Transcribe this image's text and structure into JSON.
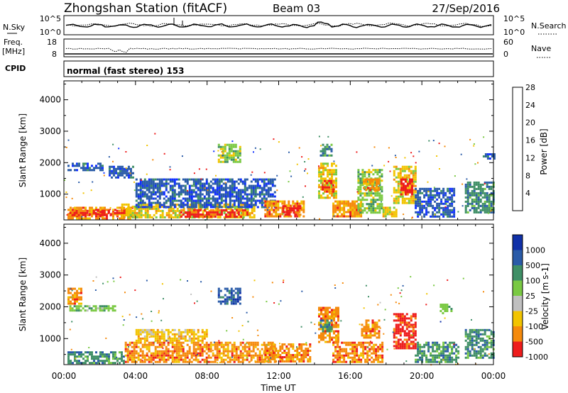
{
  "header": {
    "station": "Zhongshan Station (fitACF)",
    "beam": "Beam 03",
    "date": "27/Sep/2016"
  },
  "nsky_panel": {
    "left_label": "N.Sky",
    "left_ticks": [
      "10^5",
      "10^0"
    ],
    "right_ticks": [
      "10^5",
      "10^0"
    ],
    "right_label": "N.Search"
  },
  "freq_panel": {
    "left_label_1": "Freq.",
    "left_label_2": "[MHz]",
    "left_ticks": [
      "18",
      "8"
    ],
    "right_ticks": [
      "60",
      "0"
    ],
    "right_label": "Nave"
  },
  "cpid_panel": {
    "left_label": "CPID",
    "text": "normal (fast stereo) 153"
  },
  "chart_data": [
    {
      "type": "heatmap",
      "panel": "power",
      "ylabel": "Slant Range [km]",
      "xlabel": "",
      "xlim": [
        0,
        24
      ],
      "ylim": [
        180,
        4600
      ],
      "yticks": [
        1000,
        2000,
        3000,
        4000
      ],
      "colorbar_label": "Power [dB]",
      "colorbar_ticks": [
        "4",
        "8",
        "12",
        "16",
        "20",
        "24",
        "28"
      ],
      "colorbar_colors": [
        "#1030ff",
        "#2a5ba8",
        "#3f8f66",
        "#7ac943",
        "#f2c400",
        "#f58a0c",
        "#ee1c1c"
      ],
      "patches": [
        {
          "t0": 0.2,
          "t1": 3.8,
          "r0": 250,
          "r1": 600,
          "v": 24
        },
        {
          "t0": 0.3,
          "t1": 3.4,
          "r0": 320,
          "r1": 500,
          "v": 28
        },
        {
          "t0": 3.2,
          "t1": 10.6,
          "r0": 250,
          "r1": 700,
          "v": 20
        },
        {
          "t0": 6.5,
          "t1": 10.4,
          "r0": 260,
          "r1": 520,
          "v": 28
        },
        {
          "t0": 0.2,
          "t1": 2.2,
          "r0": 1750,
          "r1": 2000,
          "v": 8
        },
        {
          "t0": 2.5,
          "t1": 3.9,
          "r0": 1500,
          "r1": 1900,
          "v": 8
        },
        {
          "t0": 4.0,
          "t1": 11.8,
          "r0": 600,
          "r1": 1500,
          "v": 8
        },
        {
          "t0": 8.6,
          "t1": 9.8,
          "r0": 2050,
          "r1": 2600,
          "v": 16
        },
        {
          "t0": 11.2,
          "t1": 13.4,
          "r0": 280,
          "r1": 800,
          "v": 24
        },
        {
          "t0": 12.2,
          "t1": 13.2,
          "r0": 350,
          "r1": 650,
          "v": 28
        },
        {
          "t0": 14.2,
          "t1": 15.2,
          "r0": 900,
          "r1": 2000,
          "v": 20
        },
        {
          "t0": 14.4,
          "t1": 15.1,
          "r0": 1100,
          "r1": 1450,
          "v": 28
        },
        {
          "t0": 14.3,
          "t1": 14.9,
          "r0": 2200,
          "r1": 2600,
          "v": 12
        },
        {
          "t0": 15.0,
          "t1": 16.6,
          "r0": 280,
          "r1": 800,
          "v": 24
        },
        {
          "t0": 16.4,
          "t1": 17.8,
          "r0": 400,
          "r1": 1800,
          "v": 16
        },
        {
          "t0": 16.7,
          "t1": 17.6,
          "r0": 1100,
          "r1": 1500,
          "v": 24
        },
        {
          "t0": 17.8,
          "t1": 18.6,
          "r0": 280,
          "r1": 600,
          "v": 20
        },
        {
          "t0": 18.4,
          "t1": 19.6,
          "r0": 700,
          "r1": 1900,
          "v": 20
        },
        {
          "t0": 18.8,
          "t1": 19.4,
          "r0": 1000,
          "r1": 1500,
          "v": 28
        },
        {
          "t0": 19.6,
          "t1": 21.8,
          "r0": 280,
          "r1": 1200,
          "v": 8
        },
        {
          "t0": 22.4,
          "t1": 24.0,
          "r0": 400,
          "r1": 1400,
          "v": 12
        },
        {
          "t0": 23.4,
          "t1": 24.0,
          "r0": 2100,
          "r1": 2300,
          "v": 8
        }
      ]
    },
    {
      "type": "heatmap",
      "panel": "velocity",
      "ylabel": "Slant Range [km]",
      "xlabel": "Time UT",
      "xlim": [
        0,
        24
      ],
      "ylim": [
        180,
        4600
      ],
      "yticks": [
        1000,
        2000,
        3000,
        4000
      ],
      "xticks": [
        "00:00",
        "04:00",
        "08:00",
        "12:00",
        "16:00",
        "20:00",
        "00:00"
      ],
      "colorbar_label": "Velocity [m s-1]",
      "colorbar_ticks": [
        "1000",
        "500",
        "100",
        "25",
        "-25",
        "-100",
        "-500",
        "-1000"
      ],
      "colorbar_colors": [
        "#1030a8",
        "#2a5ba8",
        "#3f8f66",
        "#7ac943",
        "#c0c0c0",
        "#f2c400",
        "#f58a0c",
        "#ee1c1c"
      ],
      "patches": [
        {
          "t0": 0.2,
          "t1": 3.4,
          "r0": 250,
          "r1": 600,
          "v": 100
        },
        {
          "t0": 0.3,
          "t1": 2.8,
          "r0": 1850,
          "r1": 2050,
          "v": 25
        },
        {
          "t0": 0.2,
          "t1": 1.0,
          "r0": 2100,
          "r1": 2600,
          "v": -500
        },
        {
          "t0": 3.4,
          "t1": 11.8,
          "r0": 250,
          "r1": 900,
          "v": -500
        },
        {
          "t0": 4.0,
          "t1": 8.0,
          "r0": 900,
          "r1": 1300,
          "v": -100
        },
        {
          "t0": 8.6,
          "t1": 9.8,
          "r0": 2100,
          "r1": 2600,
          "v": 500
        },
        {
          "t0": 11.2,
          "t1": 13.8,
          "r0": 280,
          "r1": 850,
          "v": -500
        },
        {
          "t0": 14.2,
          "t1": 15.3,
          "r0": 900,
          "r1": 2000,
          "v": -500
        },
        {
          "t0": 14.3,
          "t1": 14.9,
          "r0": 1200,
          "r1": 1600,
          "v": 100
        },
        {
          "t0": 15.0,
          "t1": 17.8,
          "r0": 280,
          "r1": 900,
          "v": -500
        },
        {
          "t0": 16.6,
          "t1": 17.6,
          "r0": 1000,
          "r1": 1600,
          "v": -500
        },
        {
          "t0": 18.4,
          "t1": 19.6,
          "r0": 700,
          "r1": 1800,
          "v": -1000
        },
        {
          "t0": 19.6,
          "t1": 22.0,
          "r0": 280,
          "r1": 900,
          "v": 100
        },
        {
          "t0": 21.0,
          "t1": 21.6,
          "r0": 1800,
          "r1": 2100,
          "v": 25
        },
        {
          "t0": 22.4,
          "t1": 24.0,
          "r0": 400,
          "r1": 1300,
          "v": 100
        }
      ]
    }
  ]
}
